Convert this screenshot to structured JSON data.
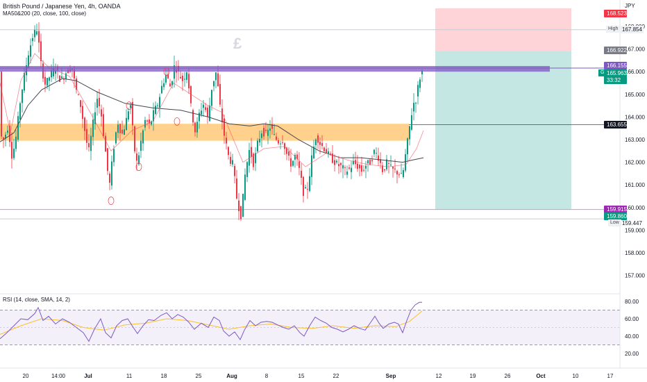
{
  "header": {
    "title": "British Pound / Japanese Yen, 4h, OANDA",
    "indicator": "MA50&200 (20, close, 100, close)",
    "rsi_indicator": "RSI (14, close, SMA, 14, 2)",
    "currency": "JPY",
    "watermark": "£"
  },
  "price_badges": {
    "stop": "168.523",
    "high_label": "High",
    "high_value": "167.854",
    "entry": "166.922",
    "zone_top": "166.155",
    "symbol": "GBPJPY",
    "last": "165.963",
    "countdown": "33:32",
    "crosshair": "163.655",
    "target": "159.915",
    "low_band": "159.860",
    "low_label": "Low",
    "low_value": "159.447"
  },
  "colors": {
    "up": "#089981",
    "down": "#f23645",
    "ma_fast": "#f7525f",
    "ma_slow": "#434651",
    "rsi": "#7e57c2",
    "rsi_ma": "#fbc02d",
    "resistance_zone": "#7e57c2",
    "support_zone": "#ff9800",
    "profit_zone": "#b2dfdb",
    "loss_zone": "#ffcdd2"
  },
  "chart_data": {
    "type": "candlestick",
    "symbol": "GBPJPY",
    "timeframe": "4h",
    "price_axis": {
      "ticks": [
        "168.000",
        "167.000",
        "166.000",
        "165.000",
        "164.000",
        "163.000",
        "162.000",
        "161.000",
        "160.000",
        "159.000",
        "158.000",
        "157.000"
      ],
      "range": [
        156.5,
        169.5
      ]
    },
    "rsi_axis": {
      "ticks": [
        "80.00",
        "60.00",
        "40.00",
        "20.00"
      ],
      "range": [
        15,
        85
      ],
      "bands": [
        70,
        50,
        30
      ]
    },
    "time_axis": {
      "labels": [
        "20",
        "14:00",
        "Jul",
        "11",
        "18",
        "25",
        "Aug",
        "8",
        "15",
        "22",
        "Sep",
        "12",
        "19",
        "26",
        "Oct",
        "10",
        "17"
      ],
      "bold": [
        "Jul",
        "Aug",
        "Sep",
        "Oct"
      ]
    },
    "levels": {
      "resistance_zone": [
        166.0,
        166.25
      ],
      "support_zone": [
        162.95,
        163.7
      ],
      "crosshair": 163.655,
      "low_line": 159.915,
      "high_line": 167.854,
      "trade": {
        "stop": 168.523,
        "entry": 166.922,
        "target": 159.915
      }
    },
    "price_path": [
      [
        0,
        163.2
      ],
      [
        6,
        163.0
      ],
      [
        12,
        163.6
      ],
      [
        18,
        162.2
      ],
      [
        24,
        163.2
      ],
      [
        30,
        164.8
      ],
      [
        36,
        165.9
      ],
      [
        42,
        166.9
      ],
      [
        48,
        167.6
      ],
      [
        54,
        167.9
      ],
      [
        60,
        166.2
      ],
      [
        66,
        165.4
      ],
      [
        72,
        165.8
      ],
      [
        80,
        166.2
      ],
      [
        88,
        165.6
      ],
      [
        96,
        166.0
      ],
      [
        104,
        166.2
      ],
      [
        110,
        165.2
      ],
      [
        116,
        164.6
      ],
      [
        122,
        163.5
      ],
      [
        128,
        162.4
      ],
      [
        134,
        163.6
      ],
      [
        140,
        164.9
      ],
      [
        146,
        164.2
      ],
      [
        152,
        162.6
      ],
      [
        158,
        160.9
      ],
      [
        164,
        162.6
      ],
      [
        170,
        163.8
      ],
      [
        176,
        163.2
      ],
      [
        182,
        163.8
      ],
      [
        188,
        164.7
      ],
      [
        194,
        162.6
      ],
      [
        198,
        161.9
      ],
      [
        204,
        163.0
      ],
      [
        210,
        163.9
      ],
      [
        216,
        163.6
      ],
      [
        222,
        164.2
      ],
      [
        228,
        164.6
      ],
      [
        234,
        165.4
      ],
      [
        240,
        165.9
      ],
      [
        246,
        165.3
      ],
      [
        252,
        166.3
      ],
      [
        258,
        165.9
      ],
      [
        264,
        165.6
      ],
      [
        270,
        166.1
      ],
      [
        276,
        164.3
      ],
      [
        282,
        163.3
      ],
      [
        288,
        164.2
      ],
      [
        294,
        164.6
      ],
      [
        300,
        163.9
      ],
      [
        306,
        165.4
      ],
      [
        312,
        166.0
      ],
      [
        318,
        164.3
      ],
      [
        324,
        163.1
      ],
      [
        330,
        162.2
      ],
      [
        336,
        161.9
      ],
      [
        342,
        160.3
      ],
      [
        348,
        159.6
      ],
      [
        354,
        161.6
      ],
      [
        360,
        162.6
      ],
      [
        366,
        161.9
      ],
      [
        372,
        162.9
      ],
      [
        378,
        163.4
      ],
      [
        384,
        163.2
      ],
      [
        390,
        163.6
      ],
      [
        396,
        163.1
      ],
      [
        402,
        162.9
      ],
      [
        408,
        163.0
      ],
      [
        414,
        162.3
      ],
      [
        420,
        161.9
      ],
      [
        426,
        162.3
      ],
      [
        432,
        161.6
      ],
      [
        438,
        160.6
      ],
      [
        444,
        160.9
      ],
      [
        450,
        162.3
      ],
      [
        456,
        163.2
      ],
      [
        462,
        162.8
      ],
      [
        468,
        162.6
      ],
      [
        474,
        162.3
      ],
      [
        480,
        162.1
      ],
      [
        486,
        161.9
      ],
      [
        492,
        161.8
      ],
      [
        498,
        161.6
      ],
      [
        504,
        161.7
      ],
      [
        510,
        162.0
      ],
      [
        516,
        161.8
      ],
      [
        522,
        161.6
      ],
      [
        528,
        161.9
      ],
      [
        534,
        162.0
      ],
      [
        540,
        162.5
      ],
      [
        546,
        162.2
      ],
      [
        552,
        161.6
      ],
      [
        558,
        162.0
      ],
      [
        564,
        161.7
      ],
      [
        570,
        161.6
      ],
      [
        576,
        161.5
      ],
      [
        580,
        161.3
      ],
      [
        584,
        162.2
      ],
      [
        588,
        163.0
      ],
      [
        592,
        163.9
      ],
      [
        596,
        164.6
      ],
      [
        600,
        164.8
      ],
      [
        604,
        165.6
      ],
      [
        608,
        166.0
      ]
    ],
    "ma_fast_path": [
      [
        0,
        165.5
      ],
      [
        15,
        163.3
      ],
      [
        30,
        165.6
      ],
      [
        50,
        166.8
      ],
      [
        70,
        166.2
      ],
      [
        100,
        165.8
      ],
      [
        130,
        164.2
      ],
      [
        160,
        162.5
      ],
      [
        190,
        163.4
      ],
      [
        220,
        163.8
      ],
      [
        250,
        165.5
      ],
      [
        280,
        164.9
      ],
      [
        300,
        164.5
      ],
      [
        320,
        164.2
      ],
      [
        350,
        162.0
      ],
      [
        380,
        162.6
      ],
      [
        410,
        162.7
      ],
      [
        440,
        161.8
      ],
      [
        470,
        162.4
      ],
      [
        500,
        162.1
      ],
      [
        530,
        161.9
      ],
      [
        560,
        161.8
      ],
      [
        585,
        161.9
      ],
      [
        600,
        162.6
      ],
      [
        610,
        163.4
      ]
    ],
    "ma_slow_path": [
      [
        0,
        162.9
      ],
      [
        20,
        163.3
      ],
      [
        40,
        164.5
      ],
      [
        60,
        165.2
      ],
      [
        90,
        165.7
      ],
      [
        110,
        165.6
      ],
      [
        140,
        165.1
      ],
      [
        180,
        164.6
      ],
      [
        220,
        164.4
      ],
      [
        260,
        164.3
      ],
      [
        300,
        164.0
      ],
      [
        330,
        163.7
      ],
      [
        360,
        163.6
      ],
      [
        380,
        163.7
      ],
      [
        400,
        163.6
      ],
      [
        430,
        163.0
      ],
      [
        460,
        162.5
      ],
      [
        490,
        162.2
      ],
      [
        520,
        162.2
      ],
      [
        550,
        162.1
      ],
      [
        580,
        162.0
      ],
      [
        595,
        162.1
      ],
      [
        610,
        162.2
      ]
    ],
    "rsi_path": [
      [
        0,
        37
      ],
      [
        10,
        44
      ],
      [
        20,
        52
      ],
      [
        30,
        60
      ],
      [
        40,
        59
      ],
      [
        50,
        66
      ],
      [
        55,
        73
      ],
      [
        62,
        58
      ],
      [
        70,
        63
      ],
      [
        80,
        54
      ],
      [
        90,
        60
      ],
      [
        100,
        56
      ],
      [
        110,
        50
      ],
      [
        120,
        44
      ],
      [
        128,
        34
      ],
      [
        136,
        48
      ],
      [
        145,
        60
      ],
      [
        152,
        44
      ],
      [
        160,
        38
      ],
      [
        168,
        52
      ],
      [
        176,
        58
      ],
      [
        184,
        60
      ],
      [
        192,
        50
      ],
      [
        198,
        43
      ],
      [
        206,
        52
      ],
      [
        214,
        59
      ],
      [
        222,
        58
      ],
      [
        232,
        64
      ],
      [
        240,
        67
      ],
      [
        248,
        60
      ],
      [
        256,
        65
      ],
      [
        264,
        62
      ],
      [
        272,
        56
      ],
      [
        280,
        48
      ],
      [
        290,
        55
      ],
      [
        300,
        50
      ],
      [
        308,
        62
      ],
      [
        316,
        58
      ],
      [
        322,
        46
      ],
      [
        330,
        40
      ],
      [
        338,
        45
      ],
      [
        346,
        36
      ],
      [
        352,
        47
      ],
      [
        360,
        58
      ],
      [
        368,
        52
      ],
      [
        376,
        56
      ],
      [
        384,
        57
      ],
      [
        392,
        56
      ],
      [
        400,
        53
      ],
      [
        408,
        50
      ],
      [
        416,
        48
      ],
      [
        424,
        52
      ],
      [
        432,
        44
      ],
      [
        438,
        40
      ],
      [
        446,
        52
      ],
      [
        454,
        62
      ],
      [
        462,
        58
      ],
      [
        470,
        55
      ],
      [
        478,
        50
      ],
      [
        486,
        48
      ],
      [
        494,
        45
      ],
      [
        502,
        48
      ],
      [
        510,
        52
      ],
      [
        518,
        49
      ],
      [
        526,
        47
      ],
      [
        534,
        56
      ],
      [
        540,
        63
      ],
      [
        546,
        55
      ],
      [
        552,
        49
      ],
      [
        560,
        54
      ],
      [
        568,
        56
      ],
      [
        574,
        54
      ],
      [
        580,
        44
      ],
      [
        586,
        58
      ],
      [
        592,
        70
      ],
      [
        598,
        76
      ],
      [
        604,
        79
      ],
      [
        608,
        79
      ]
    ],
    "rsi_ma_path": [
      [
        0,
        42
      ],
      [
        30,
        52
      ],
      [
        60,
        60
      ],
      [
        90,
        58
      ],
      [
        120,
        50
      ],
      [
        150,
        47
      ],
      [
        180,
        53
      ],
      [
        210,
        55
      ],
      [
        240,
        60
      ],
      [
        270,
        58
      ],
      [
        300,
        53
      ],
      [
        330,
        48
      ],
      [
        360,
        52
      ],
      [
        390,
        54
      ],
      [
        420,
        50
      ],
      [
        450,
        49
      ],
      [
        480,
        52
      ],
      [
        510,
        49
      ],
      [
        540,
        52
      ],
      [
        570,
        51
      ],
      [
        590,
        57
      ],
      [
        608,
        69
      ]
    ]
  }
}
